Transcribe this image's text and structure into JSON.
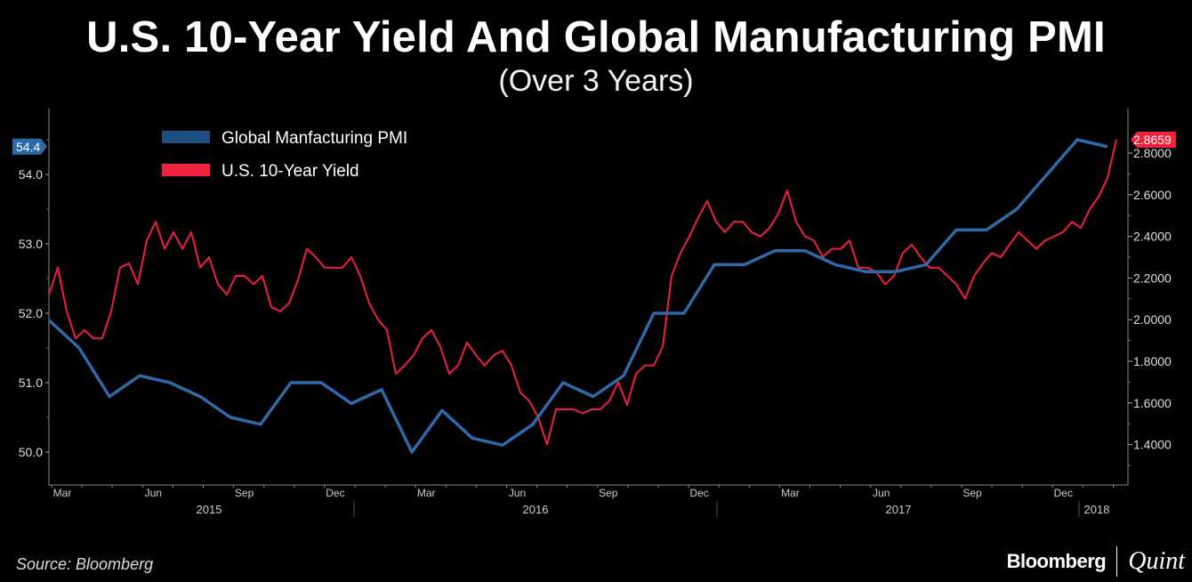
{
  "chart_data": {
    "type": "line",
    "title": "U.S. 10-Year Yield And Global Manufacturing PMI",
    "subtitle": "(Over 3 Years)",
    "source": "Source: Bloomberg",
    "brand": {
      "left": "Bloomberg",
      "right": "Quint"
    },
    "legend": {
      "placement": "top-left",
      "entries": [
        "Global Manfacturing PMI",
        "U.S. 10-Year Yield"
      ]
    },
    "colors": {
      "pmi": "#2f6aa8",
      "yield": "#f0213d",
      "pmi_legend": "#1f4f82"
    },
    "left_axis": {
      "ticks": [
        "54.0",
        "53.0",
        "52.0",
        "51.0",
        "50.0"
      ],
      "range": [
        49.5,
        54.8
      ],
      "last_value_label": "54.4"
    },
    "right_axis": {
      "ticks": [
        "2.8000",
        "2.6000",
        "2.4000",
        "2.2000",
        "2.0000",
        "1.8000",
        "1.6000",
        "1.4000"
      ],
      "range": [
        1.27,
        2.94
      ],
      "last_value_label": "2.8659"
    },
    "x_axis": {
      "months": [
        "Mar",
        "Jun",
        "Sep",
        "Dec",
        "Mar",
        "Jun",
        "Sep",
        "Dec",
        "Mar",
        "Jun",
        "Sep",
        "Dec"
      ],
      "years": [
        "2015",
        "2016",
        "2017",
        "2018"
      ]
    },
    "series": [
      {
        "name": "Global Manfacturing PMI",
        "axis": "left",
        "start": "2015-02",
        "frequency": "monthly",
        "values": [
          51.9,
          51.5,
          50.8,
          51.1,
          51.0,
          50.8,
          50.5,
          50.4,
          51.0,
          51.0,
          50.7,
          50.9,
          50.0,
          50.6,
          50.2,
          50.1,
          50.4,
          51.0,
          50.8,
          51.1,
          52.0,
          52.0,
          52.7,
          52.7,
          52.9,
          52.9,
          52.7,
          52.6,
          52.6,
          52.7,
          53.2,
          53.2,
          53.5,
          54.0,
          54.5,
          54.4
        ]
      },
      {
        "name": "U.S. 10-Year Yield",
        "axis": "right",
        "start": "2015-02",
        "end": "2018-02",
        "values": [
          2.12,
          2.25,
          2.04,
          1.91,
          1.95,
          1.91,
          1.91,
          2.04,
          2.25,
          2.27,
          2.17,
          2.38,
          2.47,
          2.34,
          2.42,
          2.34,
          2.42,
          2.25,
          2.3,
          2.17,
          2.12,
          2.21,
          2.21,
          2.17,
          2.21,
          2.06,
          2.04,
          2.08,
          2.19,
          2.34,
          2.3,
          2.25,
          2.25,
          2.25,
          2.3,
          2.21,
          2.08,
          2.0,
          1.95,
          1.74,
          1.78,
          1.83,
          1.91,
          1.95,
          1.87,
          1.74,
          1.78,
          1.89,
          1.83,
          1.78,
          1.83,
          1.85,
          1.78,
          1.65,
          1.61,
          1.53,
          1.4,
          1.57,
          1.57,
          1.57,
          1.55,
          1.57,
          1.57,
          1.61,
          1.7,
          1.59,
          1.74,
          1.78,
          1.78,
          1.87,
          2.21,
          2.32,
          2.4,
          2.49,
          2.57,
          2.47,
          2.42,
          2.47,
          2.47,
          2.42,
          2.4,
          2.44,
          2.51,
          2.62,
          2.47,
          2.4,
          2.38,
          2.3,
          2.34,
          2.34,
          2.38,
          2.25,
          2.25,
          2.23,
          2.17,
          2.21,
          2.32,
          2.36,
          2.3,
          2.25,
          2.25,
          2.21,
          2.17,
          2.1,
          2.21,
          2.27,
          2.32,
          2.3,
          2.36,
          2.42,
          2.38,
          2.34,
          2.38,
          2.4,
          2.42,
          2.47,
          2.44,
          2.53,
          2.59,
          2.68,
          2.8659
        ]
      }
    ]
  }
}
